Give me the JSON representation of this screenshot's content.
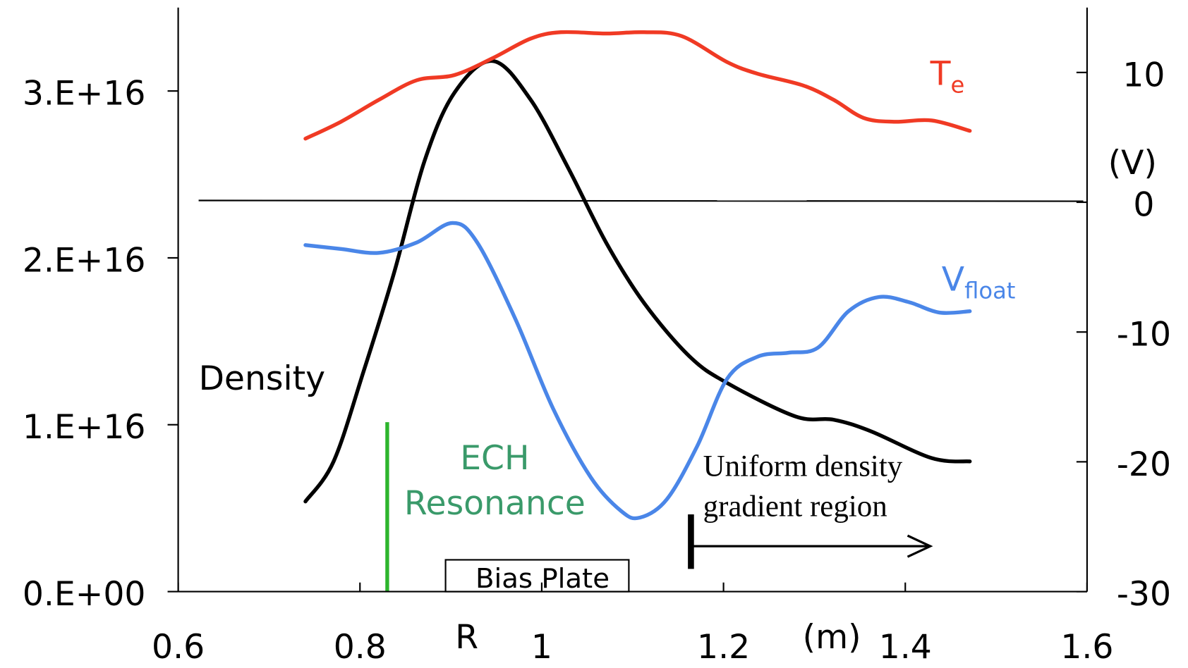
{
  "chart_data": {
    "type": "line",
    "xlabel": "R",
    "xunit": "(m)",
    "y2label": "(V)",
    "xlim": [
      0.6,
      1.6
    ],
    "xticks": [
      0.6,
      0.8,
      1,
      1.2,
      1.4,
      1.6
    ],
    "ylim": [
      0,
      3.5e+16
    ],
    "yticks": [
      {
        "value": 0,
        "label": "0.E+00"
      },
      {
        "value": 1e+16,
        "label": "1.E+16"
      },
      {
        "value": 2e+16,
        "label": "2.E+16"
      },
      {
        "value": 3e+16,
        "label": "3.E+16"
      }
    ],
    "y2lim": [
      -30,
      15
    ],
    "y2ticks": [
      -30,
      -20,
      -10,
      0,
      10
    ],
    "series": [
      {
        "name": "Density",
        "color": "#000000",
        "x": [
          0.74,
          0.771,
          0.804,
          0.8375,
          0.871,
          0.904,
          0.946,
          0.9875,
          1.029,
          1.071,
          1.1125,
          1.1625,
          1.204,
          1.279,
          1.321,
          1.3625,
          1.429,
          1.471
        ],
        "values": [
          5400000000000000.0,
          7800000000000000.0,
          1.32e+16,
          1.91e+16,
          2.58e+16,
          2.99e+16,
          3.18e+16,
          2.95e+16,
          2.54e+16,
          2.09e+16,
          1.73e+16,
          1.41e+16,
          1.25e+16,
          1.05e+16,
          1.03e+16,
          9600000000000000.0,
          8000000000000000.0,
          7800000000000000.0
        ]
      },
      {
        "name": "Te",
        "color": "#f03a24",
        "axis": "y2",
        "x": [
          0.74,
          0.779,
          0.821,
          0.8625,
          0.904,
          0.946,
          0.9875,
          1.021,
          1.071,
          1.1125,
          1.154,
          1.204,
          1.2375,
          1.2875,
          1.321,
          1.354,
          1.3875,
          1.429,
          1.471
        ],
        "values": [
          4.9,
          6.2,
          7.9,
          9.4,
          9.8,
          11.1,
          12.6,
          13.1,
          13.0,
          13.1,
          12.8,
          10.8,
          9.9,
          9.0,
          7.9,
          6.5,
          6.2,
          6.3,
          5.5
        ]
      },
      {
        "name": "Vfloat",
        "color": "#4a86e8",
        "axis": "y2",
        "x": [
          0.74,
          0.779,
          0.821,
          0.8625,
          0.9017,
          0.929,
          0.971,
          1.0125,
          1.054,
          1.0875,
          1.108,
          1.1375,
          1.171,
          1.204,
          1.2375,
          1.271,
          1.304,
          1.3375,
          1.371,
          1.404,
          1.4375,
          1.471
        ],
        "values": [
          -3.3,
          -3.6,
          -3.9,
          -3.1,
          -1.6,
          -3.1,
          -9.0,
          -15.9,
          -21.2,
          -23.8,
          -24.3,
          -22.9,
          -18.8,
          -13.6,
          -11.9,
          -11.6,
          -11.2,
          -8.4,
          -7.3,
          -7.7,
          -8.5,
          -8.4
        ]
      }
    ],
    "annotations": {
      "ech": [
        "ECH",
        "Resonance"
      ],
      "bias_plate": "Bias Plate",
      "gradient_region": [
        "Uniform density",
        "gradient region"
      ]
    }
  }
}
